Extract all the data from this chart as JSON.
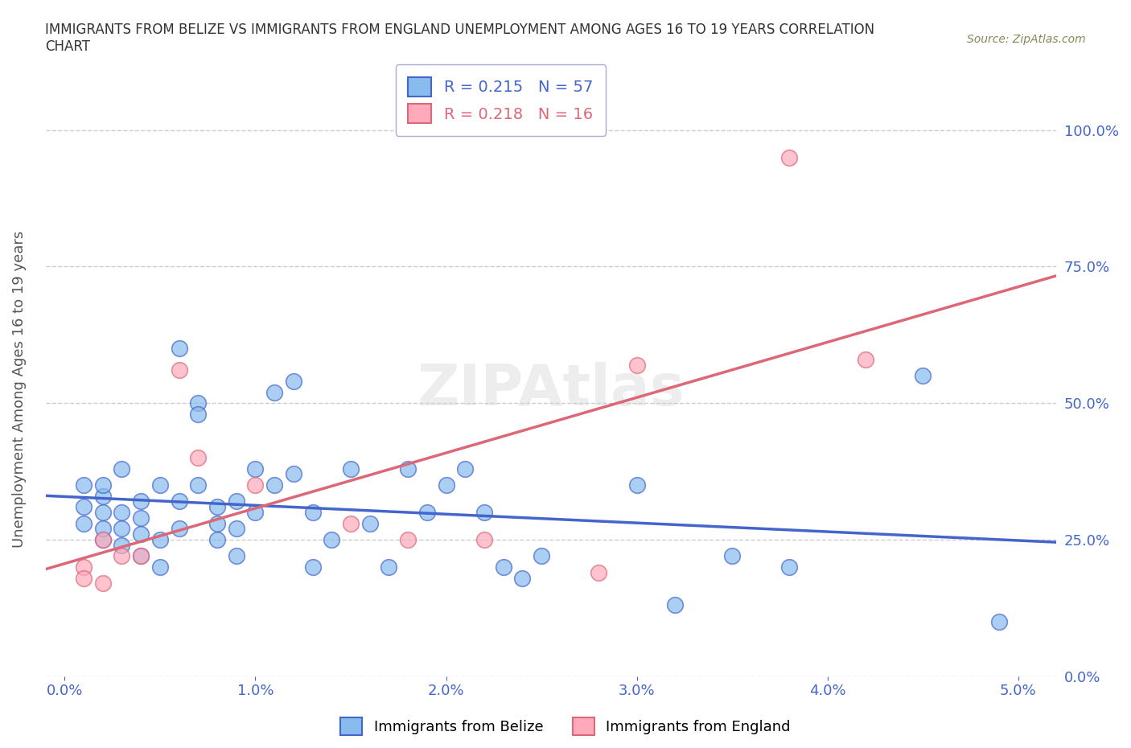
{
  "title": "IMMIGRANTS FROM BELIZE VS IMMIGRANTS FROM ENGLAND UNEMPLOYMENT AMONG AGES 16 TO 19 YEARS CORRELATION\nCHART",
  "source": "Source: ZipAtlas.com",
  "ylabel": "Unemployment Among Ages 16 to 19 years",
  "xlabel_ticks": [
    "0.0%",
    "1.0%",
    "2.0%",
    "3.0%",
    "4.0%",
    "5.0%"
  ],
  "xlabel_vals": [
    0.0,
    0.01,
    0.02,
    0.03,
    0.04,
    0.05
  ],
  "ylabel_ticks": [
    "0.0%",
    "25.0%",
    "50.0%",
    "75.0%",
    "100.0%"
  ],
  "ylabel_vals": [
    0.0,
    0.25,
    0.5,
    0.75,
    1.0
  ],
  "ylim": [
    0.0,
    1.05
  ],
  "xlim": [
    -0.001,
    0.052
  ],
  "belize_color": "#88BBEE",
  "england_color": "#FFAABB",
  "belize_line_color": "#4466CC",
  "england_line_color": "#DD6677",
  "belize_R": 0.215,
  "belize_N": 57,
  "england_R": 0.218,
  "england_N": 16,
  "legend_label_belize": "Immigrants from Belize",
  "legend_label_england": "Immigrants from England",
  "watermark": "ZIPAtlas",
  "belize_x": [
    0.001,
    0.001,
    0.001,
    0.002,
    0.002,
    0.002,
    0.002,
    0.002,
    0.003,
    0.003,
    0.003,
    0.003,
    0.004,
    0.004,
    0.004,
    0.004,
    0.005,
    0.005,
    0.005,
    0.006,
    0.006,
    0.006,
    0.007,
    0.007,
    0.007,
    0.008,
    0.008,
    0.008,
    0.009,
    0.009,
    0.009,
    0.01,
    0.01,
    0.011,
    0.011,
    0.012,
    0.012,
    0.013,
    0.013,
    0.014,
    0.015,
    0.016,
    0.017,
    0.018,
    0.019,
    0.02,
    0.021,
    0.022,
    0.023,
    0.024,
    0.025,
    0.03,
    0.032,
    0.035,
    0.038,
    0.045,
    0.049
  ],
  "belize_y": [
    0.28,
    0.31,
    0.35,
    0.25,
    0.27,
    0.3,
    0.33,
    0.35,
    0.24,
    0.27,
    0.3,
    0.38,
    0.22,
    0.26,
    0.29,
    0.32,
    0.2,
    0.25,
    0.35,
    0.6,
    0.32,
    0.27,
    0.5,
    0.48,
    0.35,
    0.31,
    0.28,
    0.25,
    0.27,
    0.32,
    0.22,
    0.38,
    0.3,
    0.52,
    0.35,
    0.54,
    0.37,
    0.3,
    0.2,
    0.25,
    0.38,
    0.28,
    0.2,
    0.38,
    0.3,
    0.35,
    0.38,
    0.3,
    0.2,
    0.18,
    0.22,
    0.35,
    0.13,
    0.22,
    0.2,
    0.55,
    0.1
  ],
  "england_x": [
    0.001,
    0.001,
    0.002,
    0.002,
    0.003,
    0.004,
    0.006,
    0.007,
    0.01,
    0.015,
    0.018,
    0.022,
    0.028,
    0.03,
    0.038,
    0.042
  ],
  "england_y": [
    0.2,
    0.18,
    0.25,
    0.17,
    0.22,
    0.22,
    0.56,
    0.4,
    0.35,
    0.28,
    0.25,
    0.25,
    0.19,
    0.57,
    0.95,
    0.58
  ],
  "grid_color": "#CCCCCC",
  "bg_color": "#FFFFFF"
}
